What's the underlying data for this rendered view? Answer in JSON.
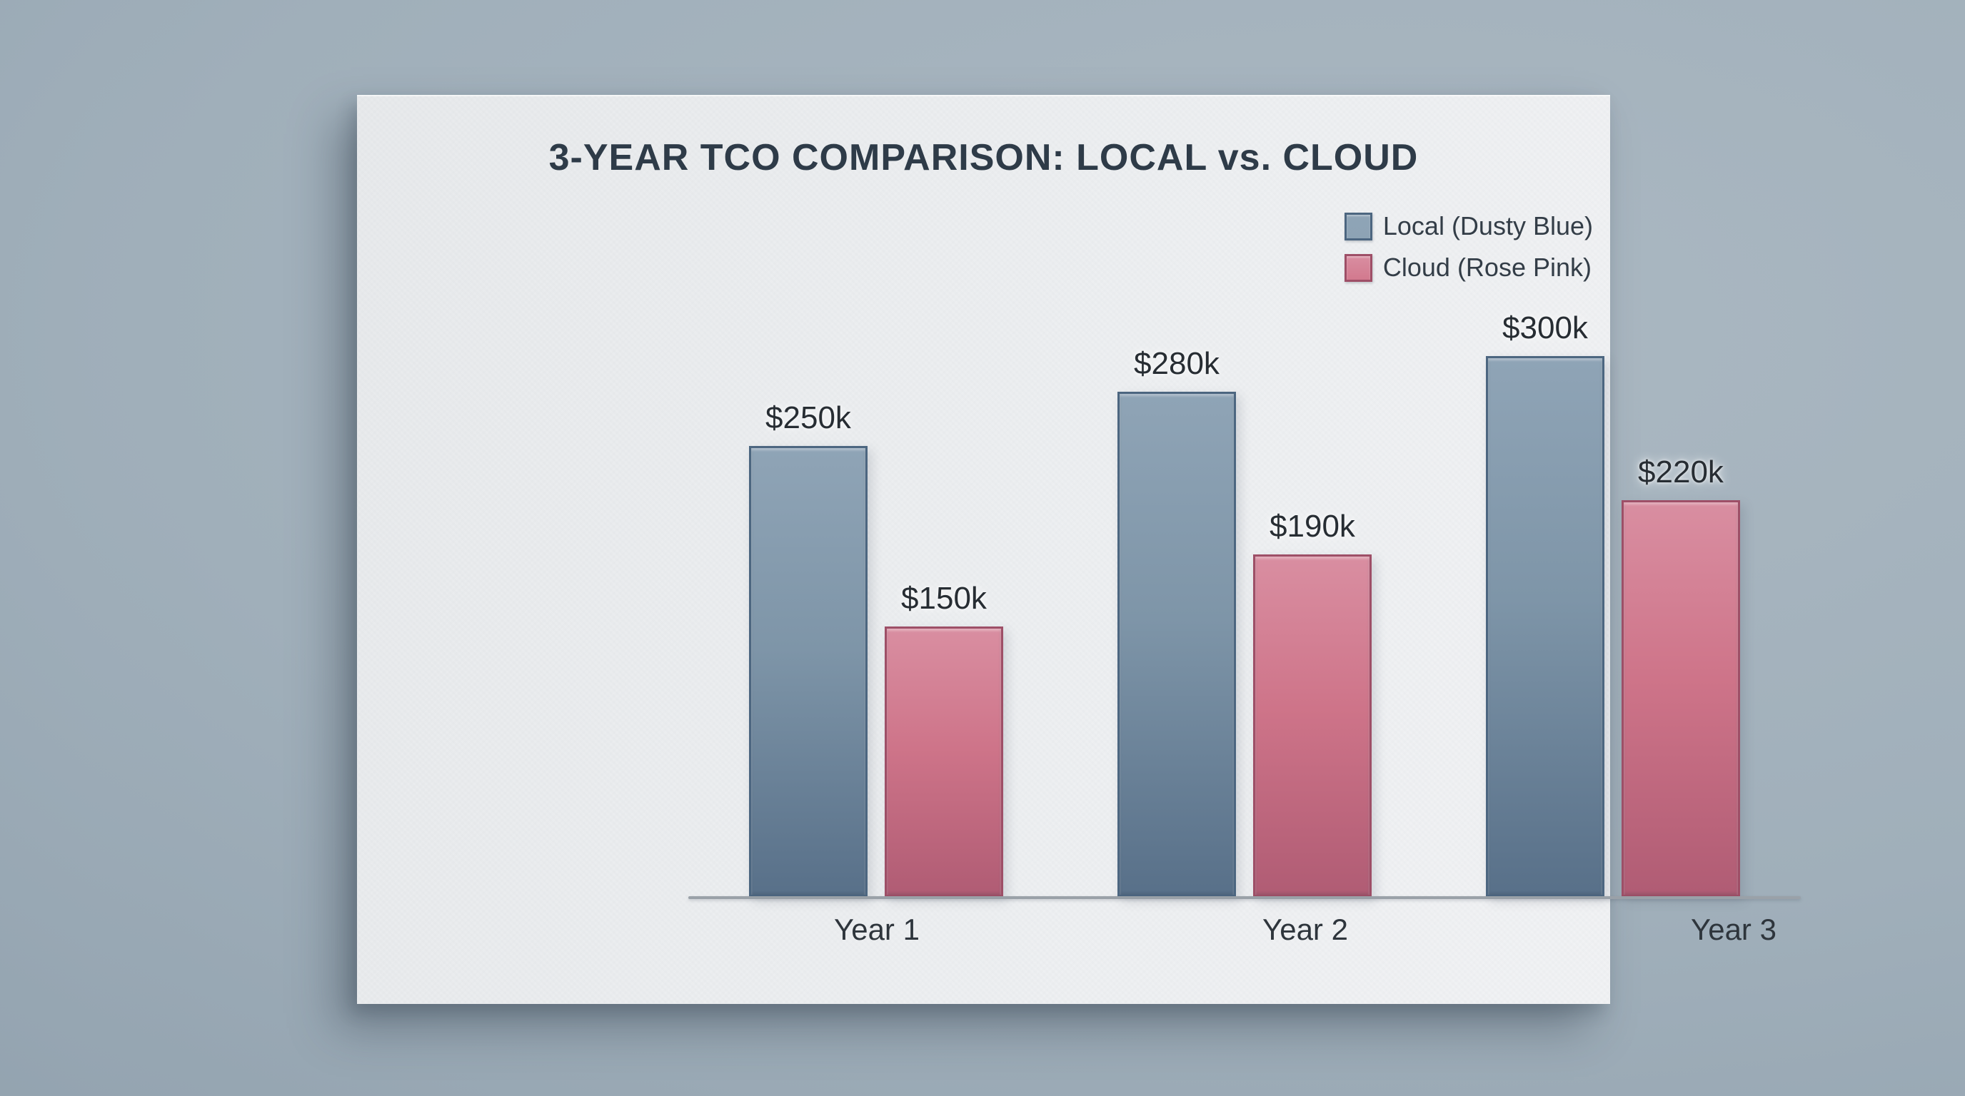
{
  "scene": {
    "background_color_top": "#abb8c2",
    "background_color_bottom": "#8596a4",
    "card_color": "#edeff1"
  },
  "chart_data": {
    "type": "bar",
    "title": "3-YEAR TCO COMPARISON: LOCAL vs. CLOUD",
    "categories": [
      "Year 1",
      "Year 2",
      "Year 3"
    ],
    "series": [
      {
        "name": "Local (Dusty Blue)",
        "values": [
          250,
          280,
          300
        ],
        "value_labels": [
          "$250k",
          "$280k",
          "$300k"
        ],
        "colors": {
          "top": "#8fa4b6",
          "mid": "#7e95a8",
          "bottom": "#587089",
          "border": "#4c6680",
          "swatch": "#8da3b5"
        }
      },
      {
        "name": "Cloud (Rose Pink)",
        "values": [
          150,
          190,
          220
        ],
        "value_labels": [
          "$150k",
          "$190k",
          "$220k"
        ],
        "colors": {
          "top": "#d98ea1",
          "mid": "#ce7489",
          "bottom": "#b05c74",
          "border": "#9e4f67",
          "swatch": "#d2798e"
        }
      }
    ],
    "unit": "USD thousands",
    "xlabel": "",
    "ylabel": "",
    "ylim": [
      0,
      300
    ],
    "grid": false,
    "legend_position": "top-right",
    "axis_line_color": "#9aa1a8",
    "title_color": "#2e3b48",
    "value_label_color": "#272d33",
    "category_label_color": "#2e353c"
  }
}
